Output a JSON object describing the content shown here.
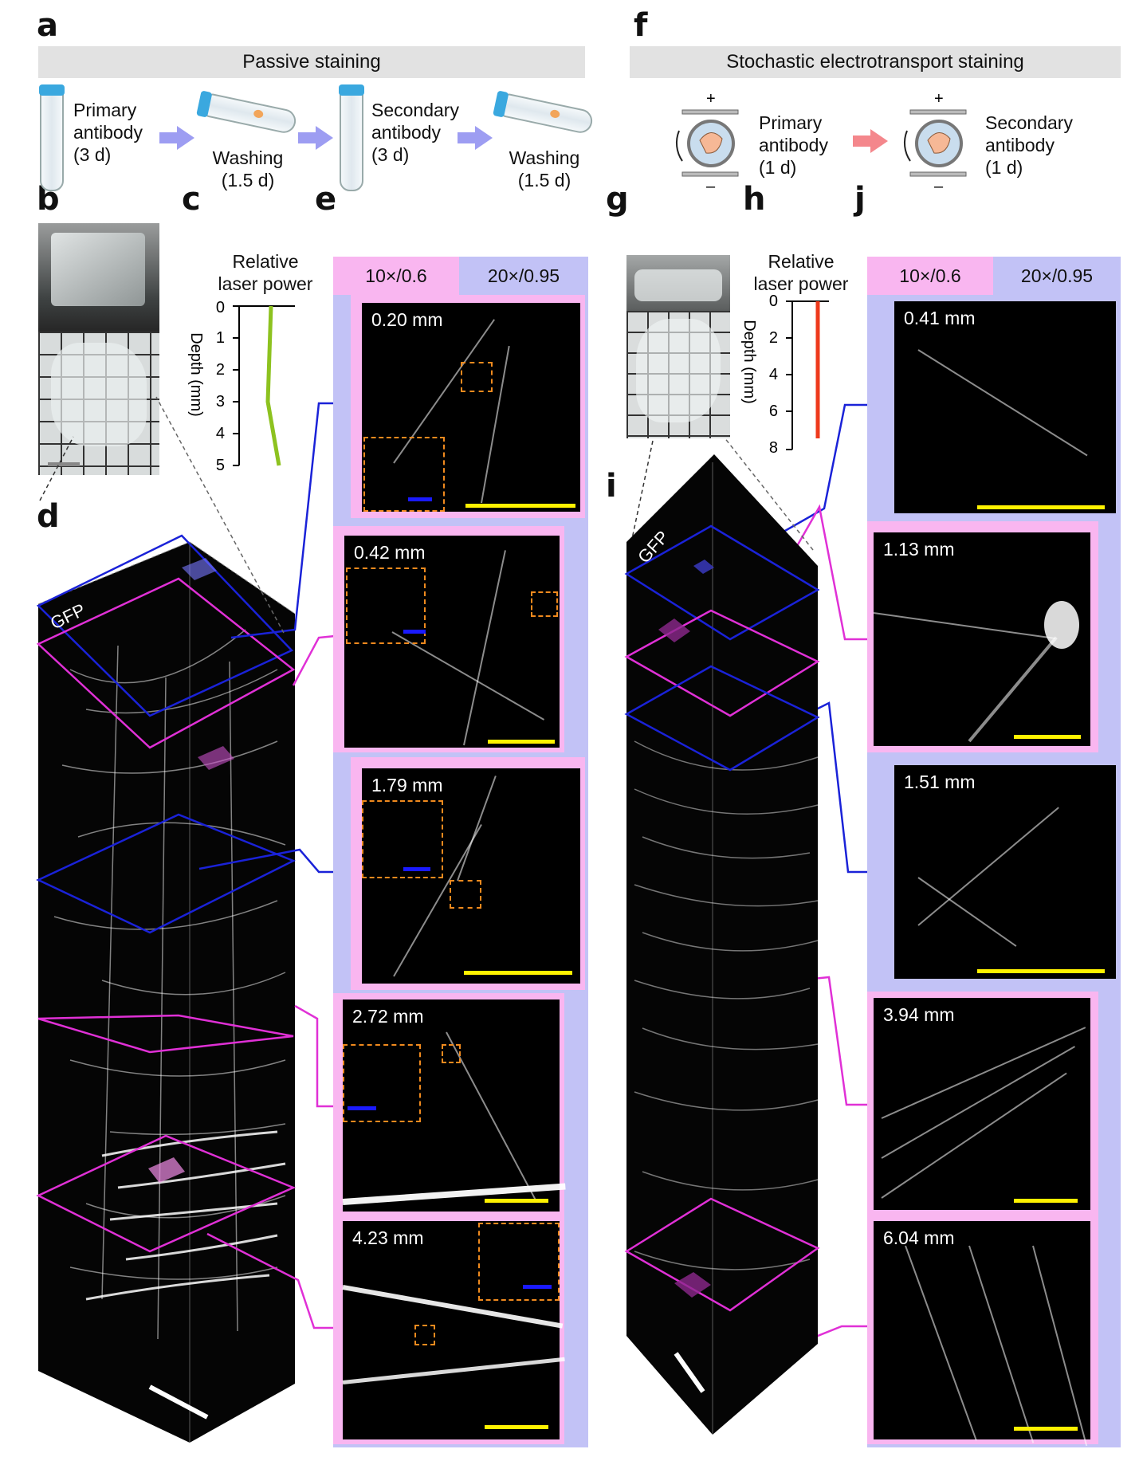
{
  "panel_letters": {
    "a": "a",
    "b": "b",
    "c": "c",
    "d": "d",
    "e": "e",
    "f": "f",
    "g": "g",
    "h": "h",
    "i": "i",
    "j": "j"
  },
  "passive": {
    "banner": "Passive staining",
    "step1": [
      "Primary",
      "antibody",
      "(3 d)"
    ],
    "step2": [
      "Washing",
      "(1.5 d)"
    ],
    "step3": [
      "Secondary",
      "antibody",
      "(3 d)"
    ],
    "step4": [
      "Washing",
      "(1.5 d)"
    ]
  },
  "stochastic": {
    "banner": "Stochastic electrotransport staining",
    "step1": [
      "Primary",
      "antibody",
      "(1 d)"
    ],
    "step2": [
      "Secondary",
      "antibody",
      "(1 d)"
    ],
    "plus": "+",
    "minus": "–"
  },
  "plot_c": {
    "title": [
      "Relative",
      "laser power"
    ],
    "ylabel": "Depth (mm)",
    "yticks": [
      "0",
      "1",
      "2",
      "3",
      "4",
      "5"
    ],
    "line_color": "#8dc21f",
    "points": [
      [
        0,
        0
      ],
      [
        0,
        3
      ],
      [
        0.2,
        5
      ]
    ]
  },
  "plot_h": {
    "title": [
      "Relative",
      "laser power"
    ],
    "ylabel": "Depth (mm)",
    "yticks": [
      "0",
      "2",
      "4",
      "6",
      "8"
    ],
    "line_color": "#ee3a1c",
    "points": [
      [
        0,
        0
      ],
      [
        0,
        7.5
      ]
    ]
  },
  "volume_d": {
    "label": "GFP"
  },
  "volume_i": {
    "label": "GFP"
  },
  "objectives": {
    "low": "10×/0.6",
    "high": "20×/0.95"
  },
  "images_e": [
    {
      "depth": "0.20 mm"
    },
    {
      "depth": "0.42 mm"
    },
    {
      "depth": "1.79 mm"
    },
    {
      "depth": "2.72 mm"
    },
    {
      "depth": "4.23 mm"
    }
  ],
  "images_j": [
    {
      "depth": "0.41 mm"
    },
    {
      "depth": "1.13 mm"
    },
    {
      "depth": "1.51 mm"
    },
    {
      "depth": "3.94 mm"
    },
    {
      "depth": "6.04 mm"
    }
  ],
  "colors": {
    "pink": "#f9b6f0",
    "lavender": "#c2c2f6",
    "blue_line": "#1a22d8",
    "magenta_line": "#e030d6",
    "arrow_blue": "#9d9df2",
    "arrow_red": "#f4878c",
    "scale_yellow": "#fff200"
  }
}
